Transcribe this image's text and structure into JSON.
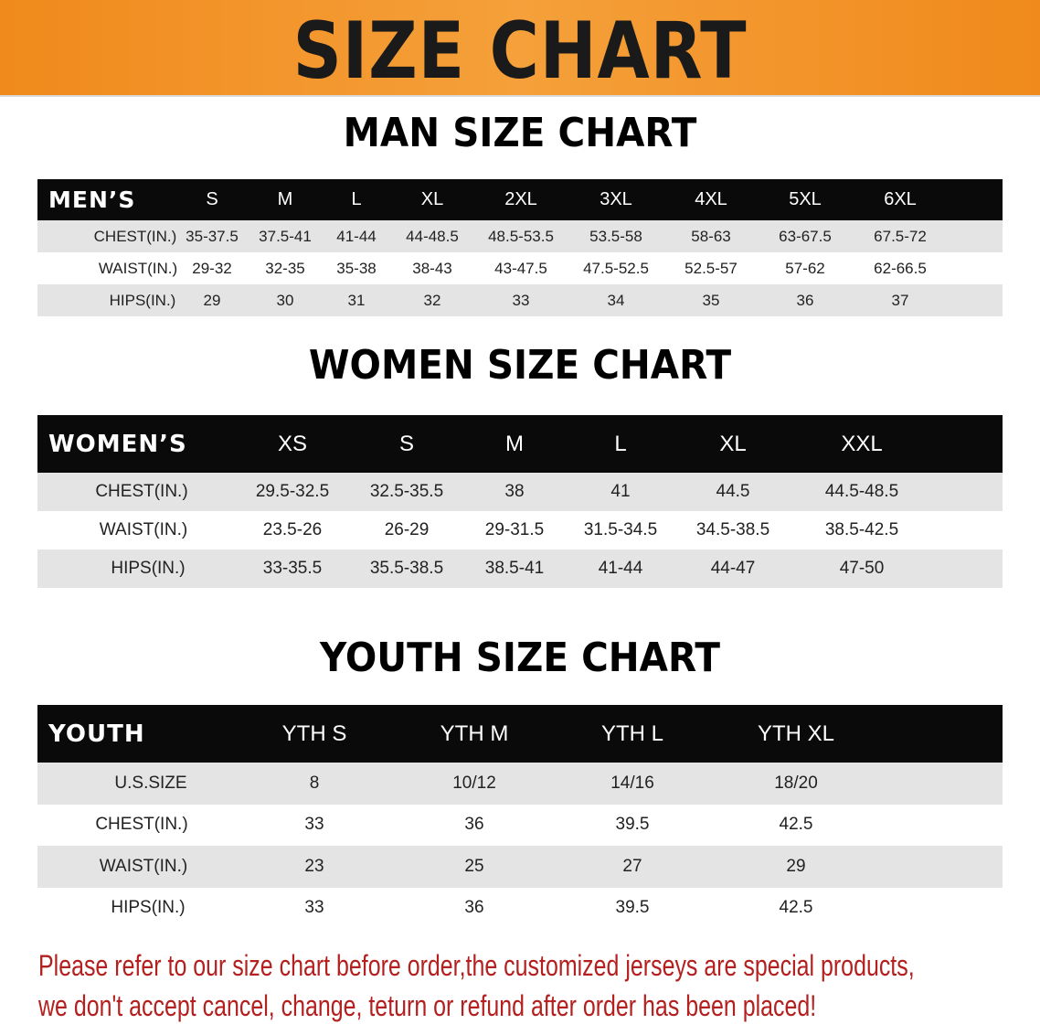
{
  "banner": {
    "title": "SIZE CHART",
    "color": "#f08a1c"
  },
  "men": {
    "title": "MAN SIZE CHART",
    "corner": "MEN’S",
    "sizes": [
      "S",
      "M",
      "L",
      "XL",
      "2XL",
      "3XL",
      "4XL",
      "5XL",
      "6XL"
    ],
    "rows": [
      {
        "label": "CHEST(IN.)",
        "values": [
          "35-37.5",
          "37.5-41",
          "41-44",
          "44-48.5",
          "48.5-53.5",
          "53.5-58",
          "58-63",
          "63-67.5",
          "67.5-72"
        ]
      },
      {
        "label": "WAIST(IN.)",
        "values": [
          "29-32",
          "32-35",
          "35-38",
          "38-43",
          "43-47.5",
          "47.5-52.5",
          "52.5-57",
          "57-62",
          "62-66.5"
        ]
      },
      {
        "label": "HIPS(IN.)",
        "values": [
          "29",
          "30",
          "31",
          "32",
          "33",
          "34",
          "35",
          "36",
          "37"
        ]
      }
    ]
  },
  "women": {
    "title": "WOMEN SIZE CHART",
    "corner": "WOMEN’S",
    "sizes": [
      "XS",
      "S",
      "M",
      "L",
      "XL",
      "XXL"
    ],
    "rows": [
      {
        "label": "CHEST(IN.)",
        "values": [
          "29.5-32.5",
          "32.5-35.5",
          "38",
          "41",
          "44.5",
          "44.5-48.5"
        ]
      },
      {
        "label": "WAIST(IN.)",
        "values": [
          "23.5-26",
          "26-29",
          "29-31.5",
          "31.5-34.5",
          "34.5-38.5",
          "38.5-42.5"
        ]
      },
      {
        "label": "HIPS(IN.)",
        "values": [
          "33-35.5",
          "35.5-38.5",
          "38.5-41",
          "41-44",
          "44-47",
          "47-50"
        ]
      }
    ]
  },
  "youth": {
    "title": "YOUTH SIZE CHART",
    "corner": "YOUTH",
    "sizes": [
      "YTH S",
      "YTH M",
      "YTH L",
      "YTH XL"
    ],
    "rows": [
      {
        "label": "U.S.SIZE",
        "values": [
          "8",
          "10/12",
          "14/16",
          "18/20"
        ]
      },
      {
        "label": "CHEST(IN.)",
        "values": [
          "33",
          "36",
          "39.5",
          "42.5"
        ]
      },
      {
        "label": "WAIST(IN.)",
        "values": [
          "23",
          "25",
          "27",
          "29"
        ]
      },
      {
        "label": "HIPS(IN.)",
        "values": [
          "33",
          "36",
          "39.5",
          "42.5"
        ]
      }
    ]
  },
  "notice": {
    "line1": "Please refer to our size chart before order,the customized jerseys are special products,",
    "line2": "we don't accept cancel, change, teturn or refund after order has been placed!",
    "color": "#b3201f"
  }
}
